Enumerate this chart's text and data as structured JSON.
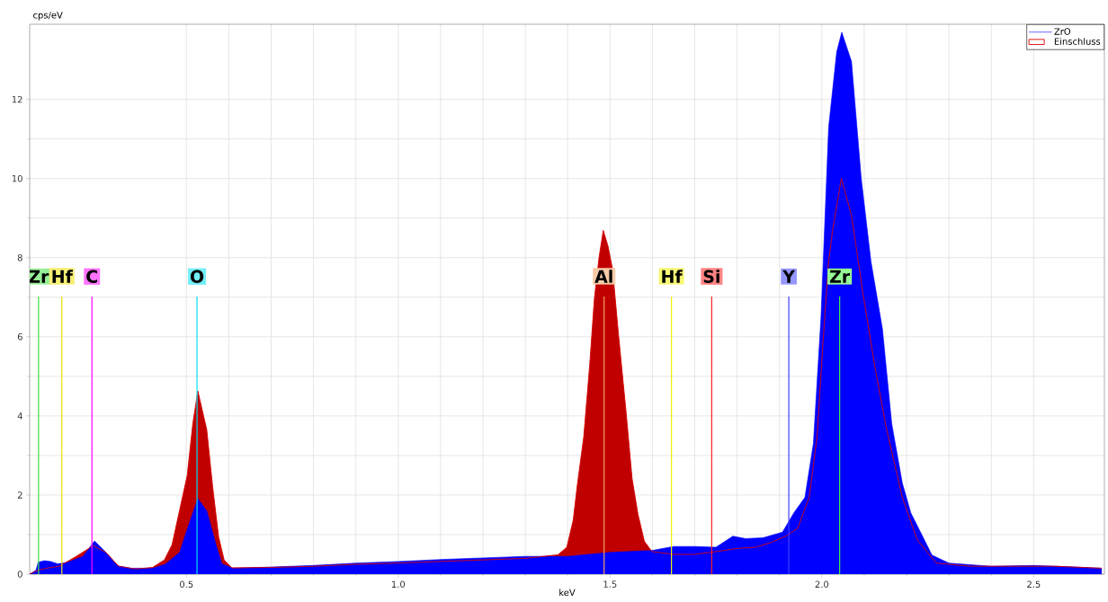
{
  "chart_data": {
    "type": "area",
    "xlabel": "keV",
    "ylabel": "cps/eV",
    "xlim": [
      0.13,
      2.667
    ],
    "ylim": [
      0,
      13.9
    ],
    "xticks": [
      0.5,
      {
        "value": 1.0,
        "label": "1.0"
      },
      1.5,
      {
        "value": 2.0,
        "label": "2.0"
      },
      2.5
    ],
    "yticks": [
      0,
      2,
      4,
      6,
      8,
      10,
      12
    ],
    "grid": true,
    "legend": "top right",
    "series": [
      {
        "name": "Einschluss",
        "color": "#c00000",
        "x": [
          0.13,
          0.15,
          0.17,
          0.2,
          0.24,
          0.28,
          0.31,
          0.34,
          0.38,
          0.42,
          0.448,
          0.466,
          0.484,
          0.502,
          0.515,
          0.527,
          0.548,
          0.562,
          0.576,
          0.589,
          0.607,
          0.7,
          0.8,
          0.9,
          1.0,
          1.1,
          1.2,
          1.3,
          1.377,
          1.398,
          1.413,
          1.423,
          1.438,
          1.452,
          1.463,
          1.474,
          1.484,
          1.495,
          1.506,
          1.52,
          1.538,
          1.552,
          1.566,
          1.581,
          1.599,
          1.65,
          1.7,
          1.75,
          1.8,
          1.843,
          1.88,
          1.915,
          1.943,
          1.97,
          1.989,
          2.002,
          2.016,
          2.025,
          2.046,
          2.07,
          2.097,
          2.125,
          2.152,
          2.19,
          2.225,
          2.27,
          2.35,
          2.45,
          2.55,
          2.66
        ],
        "values": [
          0,
          0.1,
          0.15,
          0.2,
          0.45,
          0.72,
          0.55,
          0.2,
          0.13,
          0.17,
          0.36,
          0.74,
          1.62,
          2.5,
          3.8,
          4.63,
          3.65,
          2.2,
          0.94,
          0.36,
          0.16,
          0.17,
          0.2,
          0.25,
          0.28,
          0.32,
          0.36,
          0.4,
          0.49,
          0.68,
          1.36,
          2.27,
          3.48,
          5.29,
          6.96,
          8.0,
          8.69,
          8.3,
          7.7,
          6.05,
          4.08,
          2.42,
          1.51,
          0.83,
          0.57,
          0.5,
          0.5,
          0.57,
          0.65,
          0.68,
          0.8,
          0.96,
          1.16,
          1.94,
          3.5,
          5.75,
          7.9,
          8.67,
          10.0,
          9.07,
          7.1,
          5.25,
          3.7,
          1.94,
          0.87,
          0.28,
          0.2,
          0.2,
          0.2,
          0.15
        ]
      },
      {
        "name": "ZrO",
        "color": "#0000ff",
        "x": [
          0.13,
          0.145,
          0.15,
          0.165,
          0.18,
          0.196,
          0.22,
          0.256,
          0.283,
          0.31,
          0.338,
          0.37,
          0.42,
          0.45,
          0.484,
          0.502,
          0.527,
          0.548,
          0.57,
          0.584,
          0.61,
          0.7,
          0.8,
          0.9,
          1.0,
          1.1,
          1.2,
          1.3,
          1.4,
          1.5,
          1.6,
          1.65,
          1.7,
          1.75,
          1.79,
          1.82,
          1.861,
          1.907,
          1.934,
          1.96,
          1.98,
          1.998,
          2.016,
          2.035,
          2.047,
          2.07,
          2.093,
          2.116,
          2.143,
          2.165,
          2.19,
          2.21,
          2.26,
          2.3,
          2.4,
          2.5,
          2.6,
          2.66
        ],
        "values": [
          0,
          0.1,
          0.3,
          0.34,
          0.32,
          0.26,
          0.3,
          0.45,
          0.84,
          0.55,
          0.21,
          0.15,
          0.15,
          0.25,
          0.55,
          1.14,
          1.91,
          1.6,
          0.74,
          0.26,
          0.15,
          0.18,
          0.22,
          0.28,
          0.32,
          0.37,
          0.41,
          0.45,
          0.45,
          0.55,
          0.6,
          0.7,
          0.7,
          0.68,
          0.96,
          0.9,
          0.92,
          1.06,
          1.55,
          1.94,
          3.3,
          6.5,
          11.3,
          13.2,
          13.7,
          12.96,
          10.0,
          7.9,
          6.2,
          3.8,
          2.3,
          1.55,
          0.48,
          0.28,
          0.2,
          0.22,
          0.18,
          0.15
        ]
      }
    ],
    "ref_lines": [
      {
        "axis": "x",
        "value": 0.151,
        "label": "Zr",
        "color": "#40e040"
      },
      {
        "axis": "x",
        "value": 0.206,
        "label": "Hf",
        "color": "#f0e000"
      },
      {
        "axis": "x",
        "value": 0.277,
        "label": "C",
        "color": "#ff00ff"
      },
      {
        "axis": "x",
        "value": 0.525,
        "label": "O",
        "color": "#00e0f0"
      },
      {
        "axis": "x",
        "value": 1.486,
        "label": "Al",
        "color": "#f0a060"
      },
      {
        "axis": "x",
        "value": 1.645,
        "label": "Hf",
        "color": "#f0f000"
      },
      {
        "axis": "x",
        "value": 1.74,
        "label": "Si",
        "color": "#ff2020"
      },
      {
        "axis": "x",
        "value": 1.922,
        "label": "Y",
        "color": "#4040ff"
      },
      {
        "axis": "x",
        "value": 2.042,
        "label": "Zr",
        "color": "#40f040"
      }
    ]
  }
}
